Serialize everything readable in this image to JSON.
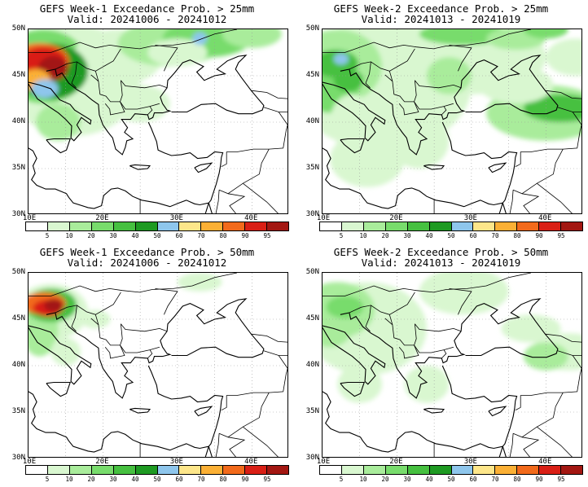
{
  "panels": [
    {
      "title": "GEFS Week-1 Exceedance Prob. > 25mm",
      "valid": "Valid: 20241006 - 20241012",
      "intensity": "w1_25"
    },
    {
      "title": "GEFS Week-2 Exceedance Prob. > 25mm",
      "valid": "Valid: 20241013 - 20241019",
      "intensity": "w2_25"
    },
    {
      "title": "GEFS Week-1 Exceedance Prob. > 50mm",
      "valid": "Valid: 20241006 - 20241012",
      "intensity": "w1_50"
    },
    {
      "title": "GEFS Week-2 Exceedance Prob. > 50mm",
      "valid": "Valid: 20241013 - 20241019",
      "intensity": "w2_50"
    }
  ],
  "axes": {
    "lat_labels": [
      "50N",
      "45N",
      "40N",
      "35N",
      "30N"
    ],
    "lon_labels": [
      "10E",
      "20E",
      "30E",
      "40E"
    ]
  },
  "colorbar": {
    "labels": [
      "5",
      "10",
      "20",
      "30",
      "40",
      "50",
      "60",
      "70",
      "80",
      "90",
      "95"
    ],
    "colors": [
      "#ffffff",
      "#d9f7d0",
      "#a9ec9b",
      "#78dc6c",
      "#46c040",
      "#1e9a22",
      "#8ec6ec",
      "#fde68a",
      "#fbb035",
      "#f26a1b",
      "#d91f15",
      "#a31712"
    ]
  }
}
